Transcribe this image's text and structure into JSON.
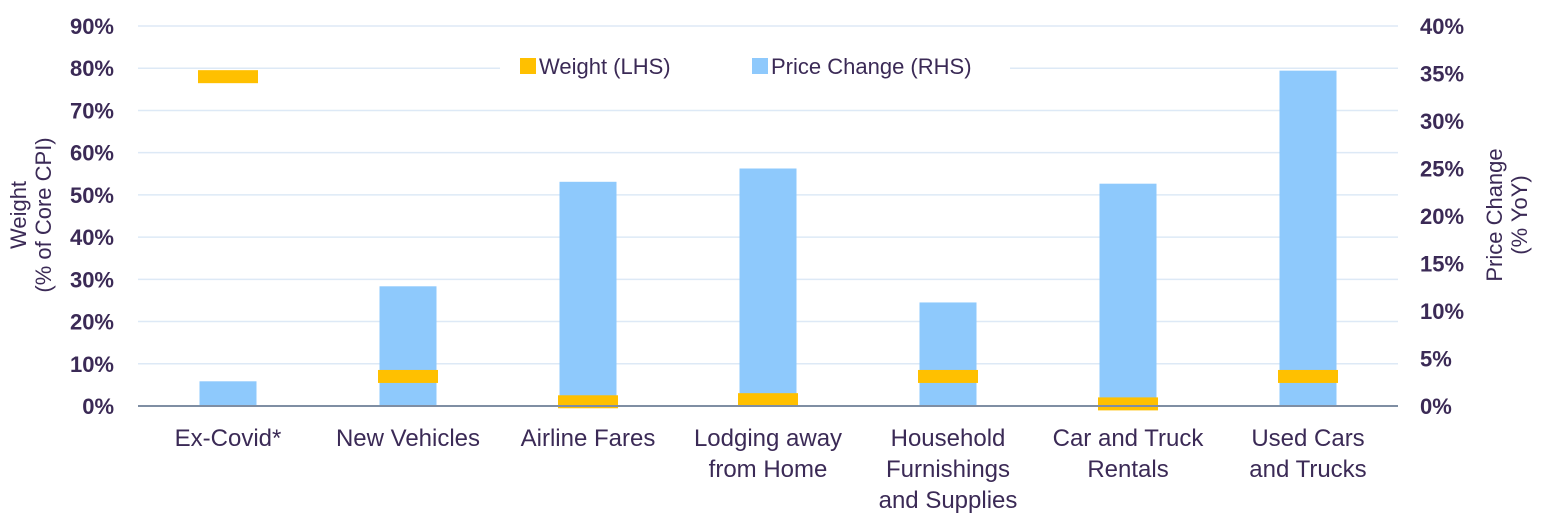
{
  "chart_data": {
    "type": "bar",
    "categories": [
      [
        "Ex-Covid*"
      ],
      [
        "New Vehicles"
      ],
      [
        "Airline Fares"
      ],
      [
        "Lodging away",
        "from Home"
      ],
      [
        "Household",
        "Furnishings",
        "and Supplies"
      ],
      [
        "Car and Truck",
        "Rentals"
      ],
      [
        "Used Cars",
        "and Trucks"
      ]
    ],
    "series": [
      {
        "name": "Weight (LHS)",
        "axis": "left",
        "marker": "dash",
        "color": "#FFC000",
        "values": [
          78,
          7,
          1,
          1.5,
          7,
          0.5,
          7
        ]
      },
      {
        "name": "Price Change (RHS)",
        "axis": "right",
        "marker": "bar",
        "color": "#8EC9FC",
        "values": [
          2.6,
          12.6,
          23.6,
          25,
          10.9,
          23.4,
          35.3
        ]
      }
    ],
    "y_left": {
      "label_lines": [
        "Weight",
        "(% of Core CPI)"
      ],
      "ylim": [
        0,
        90
      ],
      "ticks": [
        "0%",
        "10%",
        "20%",
        "30%",
        "40%",
        "50%",
        "60%",
        "70%",
        "80%",
        "90%"
      ]
    },
    "y_right": {
      "label_lines": [
        "Price Change",
        "(% YoY)"
      ],
      "ylim": [
        0,
        40
      ],
      "ticks": [
        "0%",
        "5%",
        "10%",
        "15%",
        "20%",
        "25%",
        "30%",
        "35%",
        "40%"
      ]
    },
    "grid": true,
    "legend": "top-center"
  }
}
